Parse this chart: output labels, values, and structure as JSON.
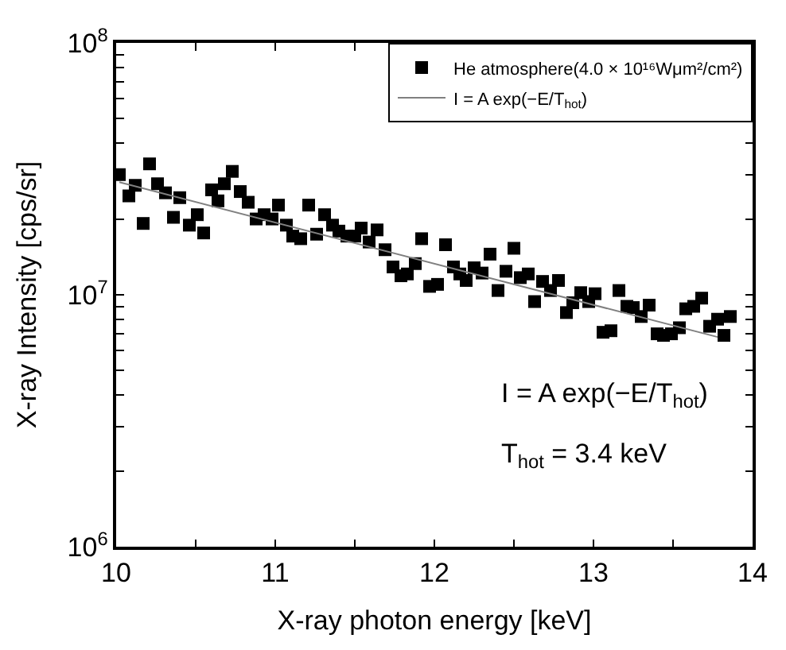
{
  "chart_data": {
    "type": "scatter",
    "xlabel": "X-ray photon energy [keV]",
    "ylabel": "X-ray Intensity [cps/sr]",
    "log": "y",
    "legend": "top right",
    "xlim": [
      10,
      14
    ],
    "xticks": [
      10,
      {
        "value": 10.5,
        "label": null
      },
      11,
      {
        "value": 11.5,
        "label": null
      },
      12,
      {
        "value": 12.5,
        "label": null
      },
      13,
      {
        "value": 13.5,
        "label": null
      },
      14
    ],
    "ylim": [
      1000000,
      100000000
    ],
    "yticks": [
      {
        "value": 1000000,
        "label": "10$^{6}$"
      },
      {
        "value": 2000000,
        "label": null
      },
      {
        "value": 3000000,
        "label": null
      },
      {
        "value": 4000000,
        "label": null
      },
      {
        "value": 5000000,
        "label": null
      },
      {
        "value": 6000000,
        "label": null
      },
      {
        "value": 7000000,
        "label": null
      },
      {
        "value": 8000000,
        "label": null
      },
      {
        "value": 9000000,
        "label": null
      },
      {
        "value": 10000000,
        "label": "10$^{7}$"
      },
      {
        "value": 20000000,
        "label": null
      },
      {
        "value": 30000000,
        "label": null
      },
      {
        "value": 40000000,
        "label": null
      },
      {
        "value": 50000000,
        "label": null
      },
      {
        "value": 60000000,
        "label": null
      },
      {
        "value": 70000000,
        "label": null
      },
      {
        "value": 80000000,
        "label": null
      },
      {
        "value": 90000000,
        "label": null
      },
      {
        "value": 100000000,
        "label": "10$^{8}$"
      }
    ],
    "annotations": [
      "I = A exp(−E/T$_{hot}$)",
      "T$_{hot}$ = 3.4 keV"
    ],
    "series": [
      {
        "name": "He atmosphere(4.0 × 10¹⁶Wμm²/cm²)",
        "marker": "square",
        "color": "#000000",
        "x": [
          10.02,
          10.08,
          10.12,
          10.17,
          10.21,
          10.26,
          10.31,
          10.36,
          10.4,
          10.46,
          10.51,
          10.55,
          10.6,
          10.64,
          10.68,
          10.73,
          10.78,
          10.83,
          10.88,
          10.93,
          10.98,
          11.02,
          11.07,
          11.11,
          11.16,
          11.21,
          11.26,
          11.31,
          11.36,
          11.4,
          11.45,
          11.5,
          11.54,
          11.59,
          11.64,
          11.69,
          11.74,
          11.79,
          11.83,
          11.88,
          11.92,
          11.97,
          12.02,
          12.07,
          12.12,
          12.16,
          12.2,
          12.25,
          12.3,
          12.35,
          12.4,
          12.45,
          12.5,
          12.54,
          12.59,
          12.63,
          12.68,
          12.73,
          12.78,
          12.83,
          12.87,
          12.92,
          12.97,
          13.01,
          13.06,
          13.11,
          13.16,
          13.21,
          13.25,
          13.3,
          13.35,
          13.4,
          13.44,
          13.49,
          13.54,
          13.58,
          13.63,
          13.68,
          13.73,
          13.78,
          13.82,
          13.86
        ],
        "values": [
          30000000.0,
          24700000.0,
          27200000.0,
          19200000.0,
          33100000.0,
          27600000.0,
          25400000.0,
          20300000.0,
          24300000.0,
          18900000.0,
          20800000.0,
          17600000.0,
          26100000.0,
          23600000.0,
          27600000.0,
          30900000.0,
          25700000.0,
          23300000.0,
          20000000.0,
          20800000.0,
          20000000.0,
          22700000.0,
          18900000.0,
          17100000.0,
          16700000.0,
          22700000.0,
          17400000.0,
          20800000.0,
          18900000.0,
          17900000.0,
          17100000.0,
          17100000.0,
          18400000.0,
          16200000.0,
          18100000.0,
          15100000.0,
          12900000.0,
          11900000.0,
          12100000.0,
          13300000.0,
          16700000.0,
          10800000.0,
          11000000.0,
          15800000.0,
          12900000.0,
          12100000.0,
          11400000.0,
          12800000.0,
          12200000.0,
          14500000.0,
          10400000.0,
          12400000.0,
          15300000.0,
          11700000.0,
          12100000.0,
          9400000.0,
          11300000.0,
          10400000.0,
          11400000.0,
          8500000.0,
          9300000.0,
          10200000.0,
          9400000.0,
          10100000.0,
          7100000.0,
          7200000.0,
          10400000.0,
          9000000.0,
          8900000.0,
          8200000.0,
          9100000.0,
          7000000.0,
          6900000.0,
          7000000.0,
          7400000.0,
          8800000.0,
          9000000.0,
          9700000.0,
          7500000.0,
          8000000.0,
          6900000.0,
          8200000.0
        ]
      },
      {
        "name": "I = A exp(−E/T$_{hot}$)",
        "type": "line",
        "marker": "none",
        "color": "#808080",
        "line_style": "solid",
        "x": [
          10.02,
          13.78
        ],
        "values": [
          28000000.0,
          6800000.0
        ]
      }
    ]
  }
}
